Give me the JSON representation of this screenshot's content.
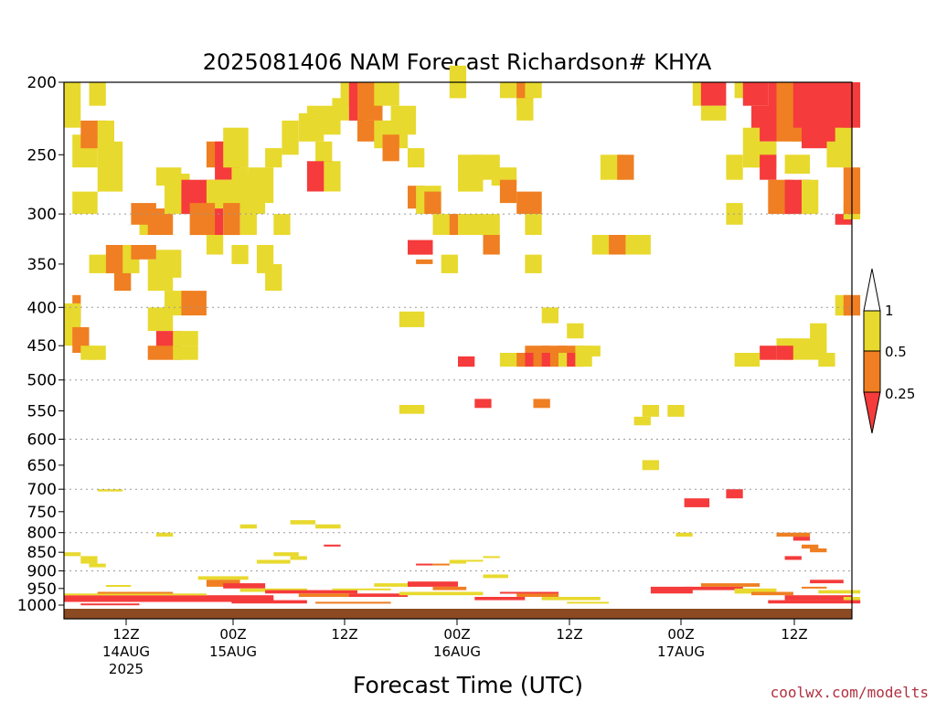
{
  "colors": {
    "yellow": "#e8d92e",
    "orange": "#ef7f22",
    "red": "#f53b3b",
    "ground": "#8b4a22",
    "credit": "#b03040"
  },
  "credit": "coolwx.com/modelts",
  "chart_data": {
    "type": "heatmap",
    "title": "2025081406 NAM Forecast Richardson# KHYA",
    "xlabel": "Forecast Time (UTC)",
    "ylabel": "",
    "y_scale": "log",
    "ylim": [
      1000,
      200
    ],
    "xlim_hours": [
      6,
      78
    ],
    "y_ticks": [
      "200",
      "250",
      "300",
      "350",
      "400",
      "450",
      "500",
      "550",
      "600",
      "650",
      "700",
      "750",
      "800",
      "850",
      "900",
      "950",
      "1000"
    ],
    "grid_levels": [
      300,
      400,
      500,
      600,
      700,
      800,
      900
    ],
    "x_ticks": [
      {
        "hour": 12,
        "line1": "12Z",
        "line2": "14AUG",
        "line3": "2025"
      },
      {
        "hour": 24,
        "line1": "00Z",
        "line2": "15AUG",
        "line3": ""
      },
      {
        "hour": 36,
        "line1": "12Z",
        "line2": "",
        "line3": ""
      },
      {
        "hour": 48,
        "line1": "00Z",
        "line2": "16AUG",
        "line3": ""
      },
      {
        "hour": 60,
        "line1": "12Z",
        "line2": "",
        "line3": ""
      },
      {
        "hour": 72,
        "line1": "00Z",
        "line2": "17AUG",
        "line3": ""
      },
      {
        "hour": 84,
        "line1": "12Z",
        "line2": "",
        "line3": ""
      }
    ],
    "legend": {
      "position": "right",
      "levels": [
        "1",
        "0.5",
        "0.25"
      ],
      "classes": [
        {
          "range": "> 1",
          "color": "white"
        },
        {
          "range": "0.5 - 1",
          "color": "yellow"
        },
        {
          "range": "0.25 - 0.5",
          "color": "orange"
        },
        {
          "range": "< 0.25",
          "color": "red"
        }
      ]
    },
    "cells": [
      [
        6,
        7,
        200,
        230,
        "y"
      ],
      [
        9,
        10,
        200,
        215,
        "y"
      ],
      [
        7,
        9,
        235,
        260,
        "y"
      ],
      [
        8,
        10,
        225,
        245,
        "o"
      ],
      [
        10,
        11,
        225,
        245,
        "y"
      ],
      [
        10,
        12,
        240,
        280,
        "y"
      ],
      [
        7,
        9,
        280,
        300,
        "y"
      ],
      [
        7,
        7,
        385,
        420,
        "o"
      ],
      [
        6,
        7,
        395,
        450,
        "y"
      ],
      [
        7,
        8,
        425,
        460,
        "o"
      ],
      [
        8,
        9,
        450,
        470,
        "y"
      ],
      [
        9,
        10,
        450,
        470,
        "y"
      ],
      [
        9,
        11,
        340,
        360,
        "y"
      ],
      [
        11,
        13,
        330,
        360,
        "o"
      ],
      [
        12,
        13,
        350,
        380,
        "o"
      ],
      [
        13,
        14,
        330,
        360,
        "y"
      ],
      [
        14,
        16,
        330,
        345,
        "o"
      ],
      [
        15,
        16,
        300,
        320,
        "y"
      ],
      [
        14,
        16,
        290,
        310,
        "o"
      ],
      [
        16,
        18,
        295,
        320,
        "o"
      ],
      [
        18,
        20,
        265,
        300,
        "y"
      ],
      [
        20,
        23,
        270,
        300,
        "r"
      ],
      [
        17,
        19,
        260,
        275,
        "y"
      ],
      [
        16,
        18,
        345,
        380,
        "y"
      ],
      [
        17,
        19,
        335,
        365,
        "y"
      ],
      [
        16,
        18,
        400,
        430,
        "y"
      ],
      [
        18,
        20,
        380,
        410,
        "y"
      ],
      [
        20,
        22,
        380,
        410,
        "o"
      ],
      [
        17,
        19,
        430,
        460,
        "r"
      ],
      [
        16,
        19,
        450,
        470,
        "o"
      ],
      [
        19,
        21,
        450,
        470,
        "y"
      ],
      [
        19,
        21,
        430,
        450,
        "y"
      ],
      [
        23,
        25,
        240,
        260,
        "o"
      ],
      [
        24,
        26,
        240,
        270,
        "r"
      ],
      [
        25,
        27,
        230,
        260,
        "y"
      ],
      [
        23,
        27,
        270,
        295,
        "y"
      ],
      [
        26,
        27,
        260,
        275,
        "y"
      ],
      [
        27,
        29,
        265,
        300,
        "y"
      ],
      [
        23,
        24,
        295,
        320,
        "r"
      ],
      [
        21,
        23,
        290,
        320,
        "o"
      ],
      [
        23,
        24,
        320,
        340,
        "y"
      ],
      [
        25,
        26,
        290,
        320,
        "o"
      ],
      [
        26,
        27,
        330,
        350,
        "y"
      ],
      [
        27,
        28,
        300,
        320,
        "y"
      ],
      [
        28,
        30,
        260,
        290,
        "y"
      ],
      [
        30,
        31,
        245,
        260,
        "y"
      ],
      [
        29,
        30,
        330,
        360,
        "y"
      ],
      [
        30,
        31,
        350,
        380,
        "y"
      ],
      [
        31,
        32,
        300,
        320,
        "y"
      ],
      [
        32,
        33,
        225,
        250,
        "y"
      ],
      [
        34,
        36,
        220,
        240,
        "y"
      ],
      [
        36,
        37,
        240,
        260,
        "y"
      ],
      [
        35,
        37,
        255,
        280,
        "r"
      ],
      [
        37,
        38,
        255,
        280,
        "y"
      ],
      [
        35,
        38,
        215,
        235,
        "y"
      ],
      [
        38,
        39,
        210,
        225,
        "y"
      ],
      [
        39,
        40,
        200,
        215,
        "y"
      ],
      [
        40,
        41,
        200,
        225,
        "r"
      ],
      [
        41,
        43,
        200,
        225,
        "o"
      ],
      [
        43,
        45,
        200,
        215,
        "y"
      ],
      [
        44,
        46,
        225,
        245,
        "y"
      ],
      [
        45,
        47,
        215,
        235,
        "y"
      ],
      [
        41,
        43,
        225,
        240,
        "o"
      ],
      [
        43,
        44,
        225,
        245,
        "y"
      ],
      [
        44,
        45,
        235,
        255,
        "o"
      ],
      [
        47,
        48,
        245,
        260,
        "y"
      ],
      [
        47,
        48,
        275,
        295,
        "o"
      ],
      [
        48,
        50,
        275,
        300,
        "y"
      ],
      [
        47,
        49,
        325,
        340,
        "r"
      ],
      [
        48,
        49,
        345,
        350,
        "o"
      ],
      [
        46,
        48,
        405,
        425,
        "y"
      ],
      [
        49,
        50,
        280,
        300,
        "o"
      ],
      [
        50,
        52,
        300,
        320,
        "y"
      ],
      [
        52,
        54,
        300,
        320,
        "o"
      ],
      [
        53,
        55,
        300,
        320,
        "y"
      ],
      [
        55,
        57,
        300,
        320,
        "y"
      ],
      [
        56,
        57,
        320,
        340,
        "o"
      ],
      [
        51,
        52,
        340,
        360,
        "y"
      ],
      [
        46,
        48,
        540,
        555,
        "y"
      ],
      [
        52,
        53,
        190,
        210,
        "y"
      ],
      [
        53,
        55,
        250,
        280,
        "y"
      ],
      [
        55,
        57,
        250,
        270,
        "y"
      ],
      [
        57,
        59,
        260,
        275,
        "y"
      ],
      [
        58,
        59,
        270,
        290,
        "o"
      ],
      [
        58,
        60,
        200,
        210,
        "y"
      ],
      [
        60,
        61,
        200,
        215,
        "o"
      ],
      [
        61,
        62,
        200,
        210,
        "y"
      ],
      [
        60,
        61,
        210,
        225,
        "y"
      ],
      [
        60,
        62,
        280,
        300,
        "o"
      ],
      [
        61,
        62,
        300,
        320,
        "y"
      ],
      [
        61,
        62,
        340,
        360,
        "y"
      ],
      [
        61,
        63,
        450,
        465,
        "o"
      ],
      [
        63,
        65,
        450,
        470,
        "o"
      ],
      [
        65,
        67,
        450,
        465,
        "o"
      ],
      [
        67,
        68,
        450,
        465,
        "y"
      ],
      [
        68,
        69,
        450,
        465,
        "y"
      ],
      [
        53,
        54,
        465,
        480,
        "r"
      ],
      [
        58,
        60,
        460,
        480,
        "y"
      ],
      [
        60,
        61,
        460,
        480,
        "o"
      ],
      [
        61,
        62,
        460,
        480,
        "r"
      ],
      [
        62,
        63,
        460,
        480,
        "o"
      ],
      [
        63,
        64,
        460,
        480,
        "r"
      ],
      [
        64,
        65,
        460,
        480,
        "o"
      ],
      [
        65,
        66,
        460,
        480,
        "y"
      ],
      [
        66,
        67,
        460,
        480,
        "r"
      ],
      [
        67,
        68,
        460,
        480,
        "y"
      ],
      [
        63,
        64,
        400,
        420,
        "y"
      ],
      [
        66,
        67,
        420,
        440,
        "y"
      ],
      [
        69,
        70,
        320,
        340,
        "y"
      ],
      [
        70,
        71,
        320,
        340,
        "y"
      ],
      [
        72,
        74,
        320,
        340,
        "y"
      ],
      [
        74,
        75,
        320,
        340,
        "y"
      ],
      [
        71,
        72,
        320,
        340,
        "o"
      ],
      [
        55,
        56,
        530,
        545,
        "r"
      ],
      [
        62,
        63,
        530,
        545,
        "o"
      ],
      [
        70,
        72,
        250,
        270,
        "y"
      ],
      [
        72,
        73,
        250,
        270,
        "o"
      ],
      [
        74,
        75,
        560,
        575,
        "y"
      ],
      [
        75,
        76,
        540,
        560,
        "y"
      ],
      [
        78,
        79,
        540,
        560,
        "y"
      ],
      [
        81,
        82,
        200,
        215,
        "y"
      ],
      [
        82,
        84,
        200,
        215,
        "r"
      ],
      [
        82,
        84,
        215,
        225,
        "y"
      ],
      [
        85,
        86,
        250,
        270,
        "y"
      ],
      [
        85,
        86,
        290,
        310,
        "y"
      ],
      [
        85,
        86,
        700,
        720,
        "r"
      ],
      [
        86,
        87,
        200,
        210,
        "y"
      ],
      [
        87,
        89,
        200,
        215,
        "r"
      ],
      [
        88,
        90,
        215,
        240,
        "r"
      ],
      [
        87,
        88,
        230,
        260,
        "y"
      ],
      [
        88,
        90,
        240,
        260,
        "y"
      ],
      [
        89,
        90,
        250,
        270,
        "r"
      ],
      [
        90,
        92,
        270,
        300,
        "o"
      ],
      [
        92,
        94,
        270,
        300,
        "r"
      ],
      [
        94,
        95,
        270,
        300,
        "y"
      ],
      [
        92,
        94,
        250,
        265,
        "y"
      ],
      [
        93,
        94,
        230,
        240,
        "y"
      ],
      [
        90,
        91,
        200,
        230,
        "r"
      ],
      [
        91,
        93,
        200,
        240,
        "o"
      ],
      [
        93,
        95,
        200,
        230,
        "r"
      ],
      [
        95,
        97,
        200,
        240,
        "r"
      ],
      [
        97,
        99,
        200,
        245,
        "r"
      ],
      [
        94,
        96,
        220,
        245,
        "r"
      ],
      [
        98,
        99,
        230,
        250,
        "y"
      ],
      [
        99,
        100,
        200,
        230,
        "r"
      ],
      [
        97,
        99,
        240,
        260,
        "y"
      ],
      [
        98,
        99,
        300,
        310,
        "r"
      ],
      [
        99,
        100,
        290,
        305,
        "y"
      ],
      [
        99,
        100,
        260,
        300,
        "o"
      ],
      [
        95,
        96,
        420,
        450,
        "y"
      ],
      [
        98,
        99,
        385,
        410,
        "y"
      ],
      [
        99,
        100,
        385,
        410,
        "o"
      ],
      [
        92,
        96,
        440,
        470,
        "y"
      ],
      [
        91,
        92,
        440,
        470,
        "y"
      ],
      [
        91,
        92,
        450,
        470,
        "r"
      ],
      [
        89,
        90,
        450,
        470,
        "r"
      ],
      [
        96,
        97,
        460,
        480,
        "y"
      ],
      [
        86,
        88,
        460,
        480,
        "y"
      ],
      [
        75,
        76,
        640,
        660,
        "y"
      ],
      [
        80,
        82,
        720,
        740,
        "r"
      ],
      [
        10,
        12,
        700,
        705,
        "y"
      ],
      [
        17,
        18,
        800,
        810,
        "y"
      ],
      [
        27,
        28,
        780,
        790,
        "y"
      ],
      [
        33,
        35,
        770,
        780,
        "y"
      ],
      [
        36,
        38,
        780,
        790,
        "y"
      ],
      [
        37,
        38,
        830,
        835,
        "r"
      ],
      [
        31,
        33,
        850,
        860,
        "y"
      ],
      [
        33,
        34,
        860,
        870,
        "y"
      ],
      [
        6,
        7,
        850,
        860,
        "y"
      ],
      [
        8,
        9,
        860,
        880,
        "y"
      ],
      [
        9,
        10,
        880,
        890,
        "y"
      ],
      [
        11,
        13,
        940,
        945,
        "y"
      ],
      [
        29,
        32,
        870,
        880,
        "y"
      ],
      [
        48,
        49,
        880,
        885,
        "r"
      ],
      [
        50,
        51,
        880,
        885,
        "o"
      ],
      [
        52,
        53,
        870,
        880,
        "y"
      ],
      [
        54,
        55,
        870,
        875,
        "y"
      ],
      [
        56,
        57,
        860,
        865,
        "y"
      ],
      [
        56,
        58,
        910,
        920,
        "y"
      ],
      [
        79,
        80,
        800,
        810,
        "y"
      ],
      [
        91,
        94,
        800,
        810,
        "o"
      ],
      [
        93,
        94,
        810,
        820,
        "r"
      ],
      [
        94,
        95,
        830,
        840,
        "o"
      ],
      [
        95,
        96,
        840,
        850,
        "o"
      ],
      [
        92,
        93,
        860,
        870,
        "r"
      ]
    ],
    "low_cells": [
      [
        6,
        30,
        970,
        990,
        "r"
      ],
      [
        6,
        22,
        965,
        970,
        "y"
      ],
      [
        10,
        18,
        960,
        965,
        "o"
      ],
      [
        22,
        27,
        915,
        925,
        "y"
      ],
      [
        23,
        26,
        925,
        945,
        "o"
      ],
      [
        25,
        29,
        935,
        950,
        "r"
      ],
      [
        27,
        34,
        950,
        960,
        "y"
      ],
      [
        30,
        40,
        955,
        965,
        "r"
      ],
      [
        34,
        40,
        965,
        975,
        "o"
      ],
      [
        40,
        46,
        965,
        975,
        "r"
      ],
      [
        38,
        44,
        950,
        955,
        "y"
      ],
      [
        43,
        47,
        935,
        945,
        "y"
      ],
      [
        47,
        52,
        930,
        945,
        "r"
      ],
      [
        50,
        53,
        945,
        955,
        "o"
      ],
      [
        46,
        55,
        960,
        970,
        "y"
      ],
      [
        55,
        60,
        975,
        985,
        "r"
      ],
      [
        58,
        64,
        960,
        965,
        "r"
      ],
      [
        60,
        64,
        965,
        975,
        "o"
      ],
      [
        63,
        69,
        975,
        985,
        "y"
      ],
      [
        66,
        70,
        990,
        995,
        "y"
      ],
      [
        76,
        80,
        945,
        965,
        "r"
      ],
      [
        80,
        86,
        945,
        955,
        "r"
      ],
      [
        82,
        88,
        935,
        945,
        "o"
      ],
      [
        86,
        90,
        950,
        965,
        "y"
      ],
      [
        88,
        92,
        960,
        970,
        "o"
      ],
      [
        92,
        99,
        970,
        985,
        "r"
      ],
      [
        99,
        100,
        975,
        990,
        "y"
      ],
      [
        96,
        100,
        955,
        965,
        "y"
      ],
      [
        94,
        96,
        945,
        950,
        "o"
      ],
      [
        95,
        98,
        925,
        935,
        "r"
      ],
      [
        90,
        100,
        985,
        995,
        "r"
      ],
      [
        8,
        14,
        995,
        1000,
        "r"
      ],
      [
        26,
        34,
        985,
        995,
        "r"
      ],
      [
        36,
        44,
        990,
        995,
        "o"
      ]
    ]
  }
}
